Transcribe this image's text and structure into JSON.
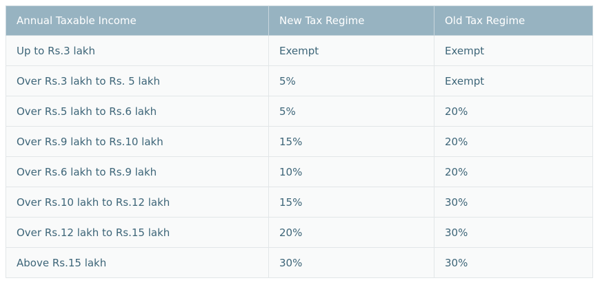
{
  "table": {
    "headers": [
      "Annual Taxable Income",
      "New Tax Regime",
      "Old Tax Regime"
    ],
    "rows": [
      [
        "Up to Rs.3 lakh",
        "Exempt",
        "Exempt"
      ],
      [
        "Over Rs.3 lakh to Rs. 5 lakh",
        "5%",
        "Exempt"
      ],
      [
        "Over Rs.5 lakh to Rs.6 lakh",
        "5%",
        "20%"
      ],
      [
        "Over Rs.9 lakh to Rs.10 lakh",
        "15%",
        "20%"
      ],
      [
        "Over Rs.6 lakh to Rs.9 lakh",
        "10%",
        "20%"
      ],
      [
        "Over Rs.10 lakh to Rs.12 lakh",
        "15%",
        "30%"
      ],
      [
        "Over Rs.12 lakh to Rs.15 lakh",
        "20%",
        "30%"
      ],
      [
        "Above Rs.15 lakh",
        "30%",
        "30%"
      ]
    ]
  }
}
